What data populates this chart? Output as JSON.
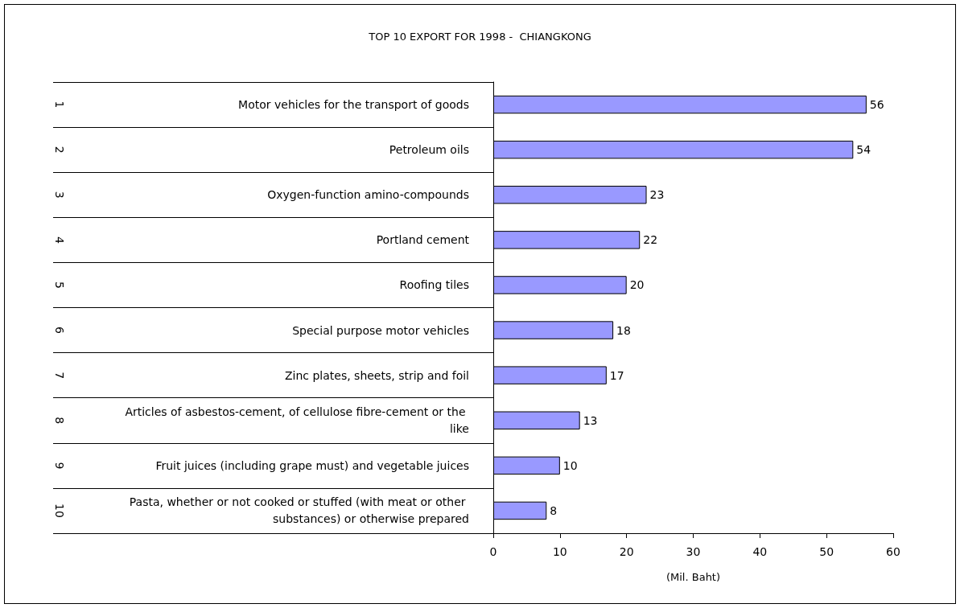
{
  "chart_data": {
    "type": "bar",
    "orientation": "horizontal",
    "title": "TOP 10 EXPORT FOR 1998 -  CHIANGKONG",
    "xlabel": "(Mil. Baht)",
    "categories": [
      "Motor vehicles for the transport of goods",
      "Petroleum oils",
      "Oxygen-function amino-compounds",
      "Portland cement",
      "Roofing tiles",
      "Special purpose motor vehicles",
      "Zinc plates, sheets, strip and foil",
      "Articles of asbestos-cement, of cellulose fibre-cement or the like",
      "Fruit juices (including grape must) and vegetable juices",
      "Pasta, whether or not cooked or stuffed (with meat or other substances) or otherwise prepared"
    ],
    "values": [
      56,
      54,
      23,
      22,
      20,
      18,
      17,
      13,
      10,
      8
    ],
    "color": "#9999ff",
    "xlim": [
      0,
      60
    ],
    "xticks": [
      0,
      10,
      20,
      30,
      40,
      50,
      60
    ],
    "data_labels": true,
    "annotations": [
      "1",
      "2",
      "3",
      "4",
      "5",
      "6",
      "7",
      "8",
      "9",
      "10"
    ]
  }
}
